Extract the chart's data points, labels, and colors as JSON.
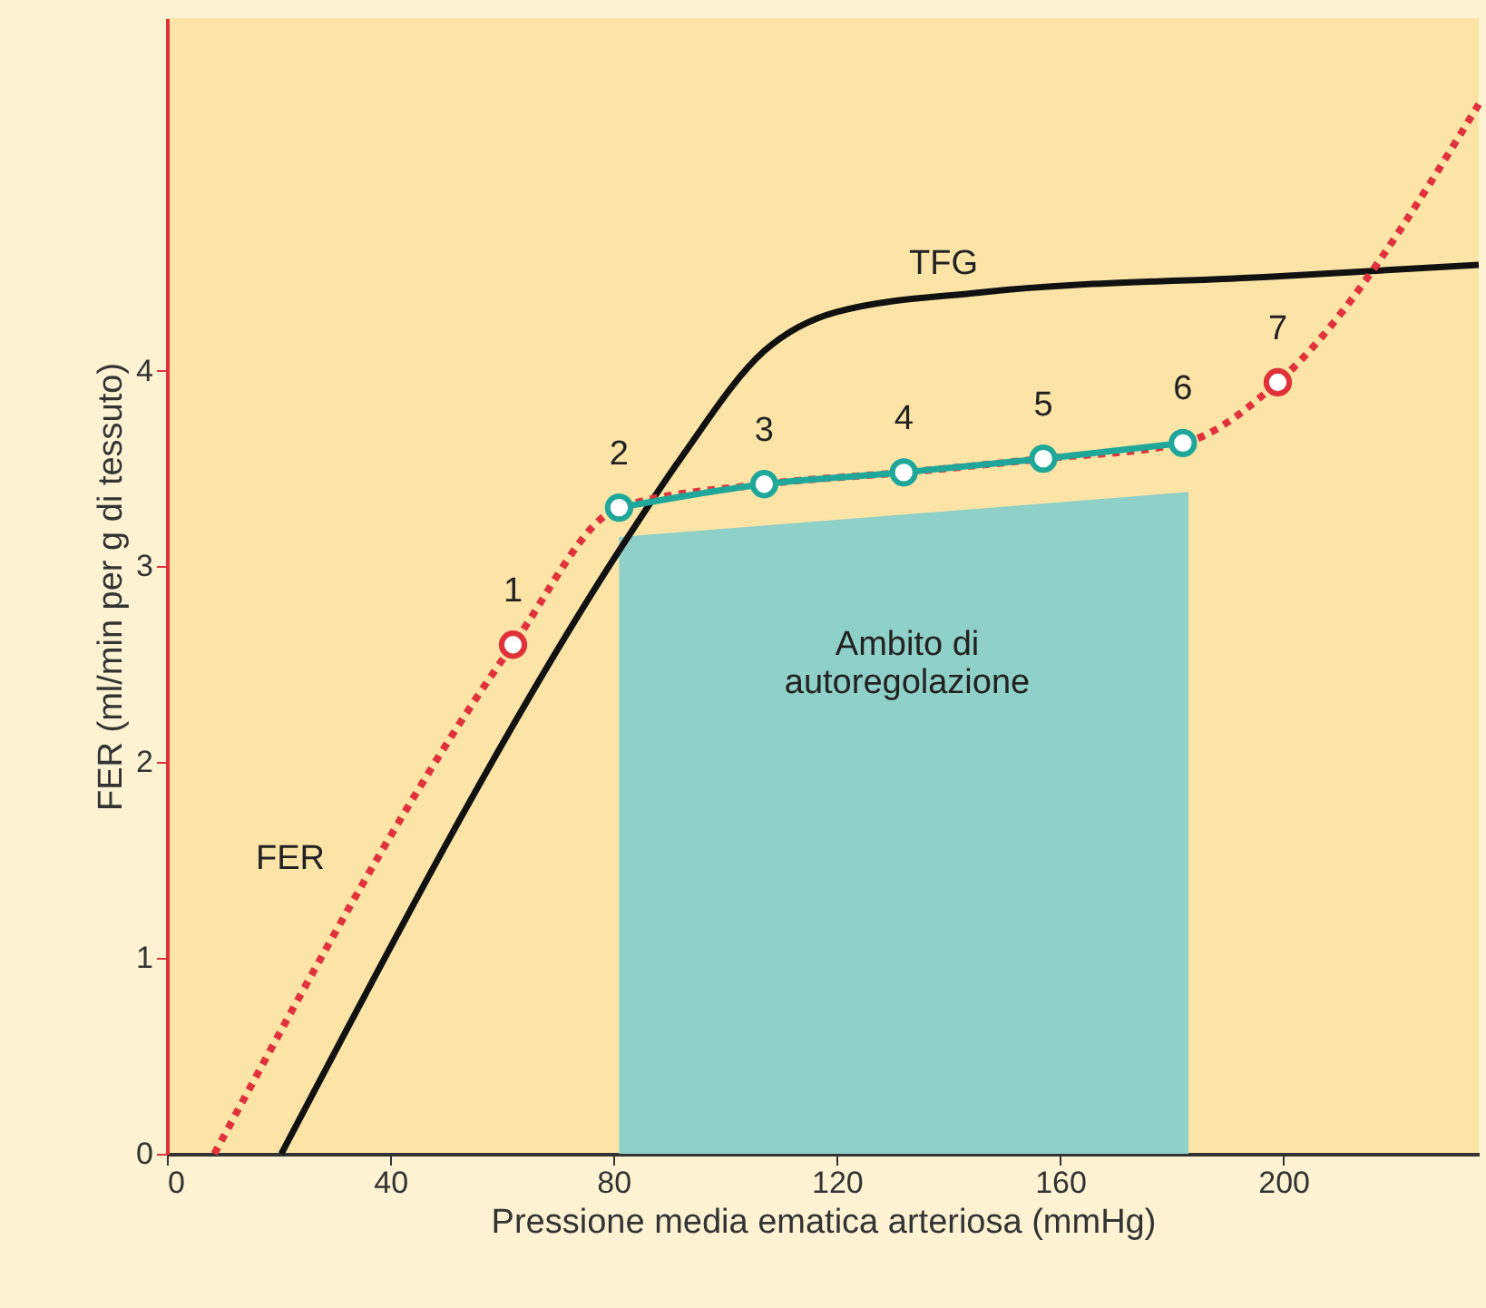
{
  "chart_data": {
    "type": "line",
    "xlabel": "Pressione media ematica arteriosa (mmHg)",
    "ylabel": "FER (ml/min per g di tessuto)",
    "xlim": [
      0,
      235
    ],
    "xticks": [
      0,
      40,
      80,
      120,
      160,
      200
    ],
    "ylim": [
      0,
      5.8
    ],
    "yticks": [
      0,
      1,
      2,
      3,
      4
    ],
    "grid": false,
    "series": [
      {
        "type": "area",
        "color": "#8fd0c8",
        "x": [
          81,
          183
        ],
        "values": [
          3.15,
          3.38
        ]
      },
      {
        "color": "#111111",
        "line_style": "solid",
        "marker": "none",
        "x": [
          20.5,
          81,
          null,
          92,
          107,
          120,
          146,
          198,
          235
        ],
        "values": [
          0,
          3.08,
          null,
          3.55,
          4.1,
          4.3,
          4.4,
          4.48,
          4.54
        ]
      },
      {
        "color": "#e0323a",
        "line_style": "dotted",
        "marker": "none",
        "x": [
          8.5,
          62,
          81,
          107,
          132,
          157,
          182,
          199,
          235
        ],
        "values": [
          0,
          2.6,
          3.3,
          3.42,
          3.48,
          3.55,
          3.63,
          3.94,
          5.36
        ]
      },
      {
        "color": "#1fa89a",
        "line_style": "solid",
        "marker": "none",
        "x": [
          81,
          107,
          132,
          157,
          182
        ],
        "values": [
          3.3,
          3.42,
          3.48,
          3.55,
          3.63
        ]
      },
      {
        "type": "scatter",
        "marker": "circle",
        "colors": [
          "#e0323a",
          "#1fa89a",
          "#1fa89a",
          "#1fa89a",
          "#1fa89a",
          "#1fa89a",
          "#e0323a"
        ],
        "x": [
          62,
          81,
          107,
          132,
          157,
          182,
          199
        ],
        "values": [
          2.6,
          3.3,
          3.42,
          3.48,
          3.55,
          3.63,
          3.94
        ]
      }
    ],
    "annotations": [
      {
        "text": "1",
        "x": 62,
        "y": 2.6
      },
      {
        "text": "2",
        "x": 81,
        "y": 3.3
      },
      {
        "text": "3",
        "x": 107,
        "y": 3.42
      },
      {
        "text": "4",
        "x": 132,
        "y": 3.48
      },
      {
        "text": "5",
        "x": 157,
        "y": 3.55
      },
      {
        "text": "6",
        "x": 182,
        "y": 3.63
      },
      {
        "text": "7",
        "x": 199,
        "y": 3.94
      },
      "TFG",
      "FER",
      "Ambito di\nautoregolazione"
    ]
  }
}
